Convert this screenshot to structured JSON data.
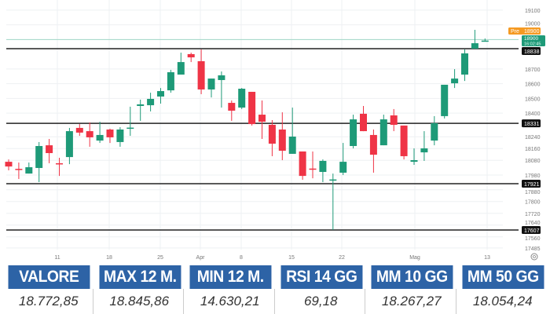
{
  "chart_data": {
    "type": "candlestick",
    "x_tick_labels": [
      "11",
      "18",
      "25",
      "Apr",
      "8",
      "15",
      "22",
      "Mag",
      "13"
    ],
    "y_tick_labels": [
      19100,
      19000,
      18700,
      18600,
      18500,
      18400,
      18240,
      18160,
      18080,
      17980,
      17880,
      17800,
      17720,
      17640,
      17560,
      17485
    ],
    "ylim": [
      17470,
      19110
    ],
    "candles": [
      [
        18070,
        18086,
        18012,
        18038
      ],
      [
        18022,
        18065,
        17953,
        18017
      ],
      [
        17990,
        18065,
        17990,
        18033
      ],
      [
        18028,
        18204,
        17932,
        18177
      ],
      [
        18182,
        18225,
        18060,
        18129
      ],
      [
        18060,
        18097,
        17974,
        18055
      ],
      [
        18102,
        18300,
        18054,
        18278
      ],
      [
        18300,
        18326,
        18246,
        18268
      ],
      [
        18278,
        18337,
        18172,
        18236
      ],
      [
        18214,
        18342,
        18198,
        18252
      ],
      [
        18289,
        18295,
        18198,
        18236
      ],
      [
        18204,
        18305,
        18172,
        18289
      ],
      [
        18298,
        18444,
        18246,
        18302
      ],
      [
        18449,
        18492,
        18348,
        18460
      ],
      [
        18454,
        18539,
        18412,
        18497
      ],
      [
        18513,
        18571,
        18465,
        18550
      ],
      [
        18555,
        18694,
        18539,
        18678
      ],
      [
        18662,
        18811,
        18662,
        18747
      ],
      [
        18801,
        18811,
        18747,
        18779
      ],
      [
        18753,
        18833,
        18529,
        18561
      ],
      [
        18561,
        18635,
        18507,
        18635
      ],
      [
        18625,
        18683,
        18438,
        18657
      ],
      [
        18470,
        18486,
        18348,
        18417
      ],
      [
        18438,
        18571,
        18428,
        18566
      ],
      [
        18545,
        18545,
        18316,
        18326
      ],
      [
        18390,
        18486,
        18225,
        18342
      ],
      [
        18321,
        18353,
        18108,
        18193
      ],
      [
        18289,
        18406,
        18081,
        18145
      ],
      [
        18124,
        18438,
        18124,
        18241
      ],
      [
        18140,
        18140,
        17948,
        17974
      ],
      [
        18024,
        18140,
        17958,
        18020
      ],
      [
        18001,
        18086,
        17932,
        18076
      ],
      [
        17946,
        17990,
        17607,
        17950
      ],
      [
        17996,
        18198,
        17980,
        18070
      ],
      [
        18177,
        18390,
        18161,
        18358
      ],
      [
        18396,
        18449,
        18278,
        18278
      ],
      [
        18252,
        18289,
        17996,
        18118
      ],
      [
        18182,
        18390,
        18182,
        18358
      ],
      [
        18385,
        18428,
        18278,
        18321
      ],
      [
        18316,
        18316,
        18086,
        18108
      ],
      [
        18070,
        18161,
        18049,
        18081
      ],
      [
        18134,
        18278,
        18076,
        18161
      ],
      [
        18214,
        18380,
        18182,
        18332
      ],
      [
        18380,
        18593,
        18364,
        18593
      ],
      [
        18603,
        18699,
        18571,
        18635
      ],
      [
        18662,
        18833,
        18619,
        18806
      ],
      [
        18838,
        18966,
        18838,
        18875
      ],
      [
        18891,
        18907,
        18886,
        18893
      ]
    ],
    "horizontal_levels": [
      18838,
      18331,
      17921,
      17607
    ],
    "current_price": {
      "value": 18900,
      "label": "18900",
      "time": "16:02:45"
    },
    "premarket": {
      "tag": "Pre",
      "label": "18900"
    },
    "colors": {
      "up": "#1e9a78",
      "down": "#ef3446",
      "level": "#222222",
      "premarket": "#f59a23",
      "grid": "#eef0f3"
    }
  },
  "settings_icon": "gear-icon",
  "table": {
    "headers": [
      "VALORE",
      "MAX 12 M.",
      "MIN 12 M.",
      "RSI 14 GG",
      "MM 10 GG",
      "MM 50 GG"
    ],
    "values": [
      "18.772,85",
      "18.845,86",
      "14.630,21",
      "69,18",
      "18.267,27",
      "18.054,24"
    ],
    "header_color": "#2d63a6"
  }
}
